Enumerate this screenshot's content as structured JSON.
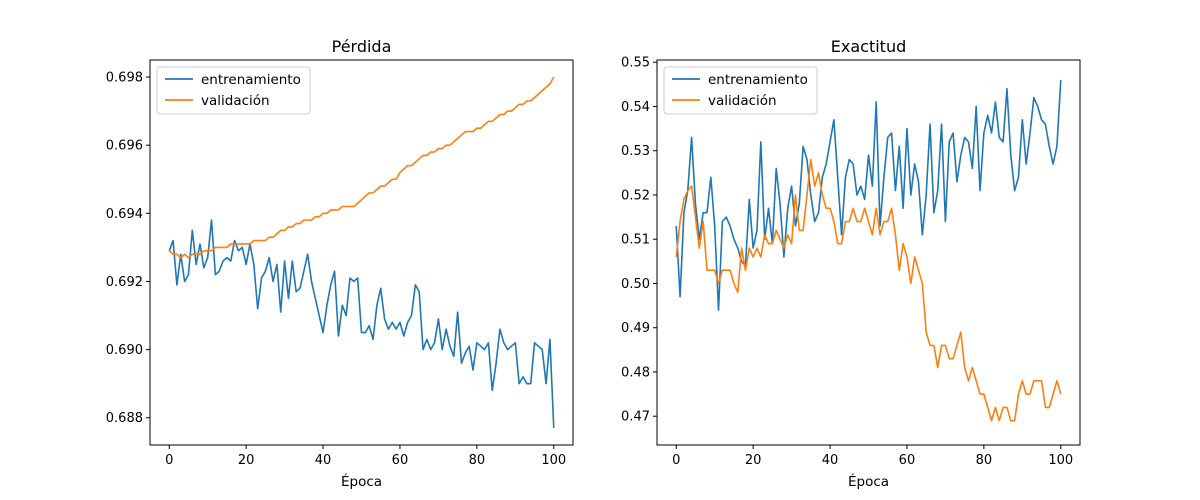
{
  "chart_data": [
    {
      "type": "line",
      "title": "Pérdida",
      "xlabel": "Época",
      "ylabel": "",
      "xlim": [
        -5,
        105
      ],
      "ylim": [
        0.6872,
        0.6985
      ],
      "xticks": [
        0,
        20,
        40,
        60,
        80,
        100
      ],
      "xtick_labels": [
        "0",
        "20",
        "40",
        "60",
        "80",
        "100"
      ],
      "yticks": [
        0.688,
        0.69,
        0.692,
        0.694,
        0.696,
        0.698
      ],
      "ytick_labels": [
        "0.688",
        "0.690",
        "0.692",
        "0.694",
        "0.696",
        "0.698"
      ],
      "grid": false,
      "legend": "top-left",
      "series": [
        {
          "name": "entrenamiento",
          "color": "#1f77b4",
          "x": [
            0,
            1,
            2,
            3,
            4,
            5,
            6,
            7,
            8,
            9,
            10,
            11,
            12,
            13,
            14,
            15,
            16,
            17,
            18,
            19,
            20,
            21,
            22,
            23,
            24,
            25,
            26,
            27,
            28,
            29,
            30,
            31,
            32,
            33,
            34,
            35,
            36,
            37,
            38,
            39,
            40,
            41,
            42,
            43,
            44,
            45,
            46,
            47,
            48,
            49,
            50,
            51,
            52,
            53,
            54,
            55,
            56,
            57,
            58,
            59,
            60,
            61,
            62,
            63,
            64,
            65,
            66,
            67,
            68,
            69,
            70,
            71,
            72,
            73,
            74,
            75,
            76,
            77,
            78,
            79,
            80,
            81,
            82,
            83,
            84,
            85,
            86,
            87,
            88,
            89,
            90,
            91,
            92,
            93,
            94,
            95,
            96,
            97,
            98,
            99,
            100
          ],
          "y": [
            0.6929,
            0.6932,
            0.6919,
            0.6928,
            0.692,
            0.6922,
            0.6935,
            0.6925,
            0.6931,
            0.6924,
            0.6927,
            0.6938,
            0.6922,
            0.6923,
            0.6926,
            0.6927,
            0.6926,
            0.6932,
            0.6929,
            0.693,
            0.6925,
            0.6931,
            0.6925,
            0.6912,
            0.6921,
            0.6923,
            0.6927,
            0.692,
            0.6925,
            0.6911,
            0.6926,
            0.6915,
            0.6926,
            0.6917,
            0.6918,
            0.6923,
            0.6928,
            0.692,
            0.6915,
            0.691,
            0.6905,
            0.6913,
            0.6919,
            0.6923,
            0.6904,
            0.6913,
            0.691,
            0.6921,
            0.692,
            0.6921,
            0.6905,
            0.6905,
            0.6907,
            0.6903,
            0.6913,
            0.6918,
            0.6909,
            0.6906,
            0.6908,
            0.6906,
            0.6908,
            0.6904,
            0.6908,
            0.691,
            0.6919,
            0.6917,
            0.69,
            0.6903,
            0.69,
            0.6902,
            0.6909,
            0.69,
            0.6906,
            0.6901,
            0.6898,
            0.6911,
            0.6896,
            0.6899,
            0.6901,
            0.6894,
            0.6902,
            0.6901,
            0.69,
            0.6902,
            0.6888,
            0.6896,
            0.6906,
            0.6902,
            0.69,
            0.6901,
            0.6902,
            0.689,
            0.6892,
            0.689,
            0.689,
            0.6902,
            0.6901,
            0.69,
            0.689,
            0.6903,
            0.6877
          ]
        },
        {
          "name": "validación",
          "color": "#ff7f0e",
          "x": [
            0,
            1,
            2,
            3,
            4,
            5,
            6,
            7,
            8,
            9,
            10,
            11,
            12,
            13,
            14,
            15,
            16,
            17,
            18,
            19,
            20,
            21,
            22,
            23,
            24,
            25,
            26,
            27,
            28,
            29,
            30,
            31,
            32,
            33,
            34,
            35,
            36,
            37,
            38,
            39,
            40,
            41,
            42,
            43,
            44,
            45,
            46,
            47,
            48,
            49,
            50,
            51,
            52,
            53,
            54,
            55,
            56,
            57,
            58,
            59,
            60,
            61,
            62,
            63,
            64,
            65,
            66,
            67,
            68,
            69,
            70,
            71,
            72,
            73,
            74,
            75,
            76,
            77,
            78,
            79,
            80,
            81,
            82,
            83,
            84,
            85,
            86,
            87,
            88,
            89,
            90,
            91,
            92,
            93,
            94,
            95,
            96,
            97,
            98,
            99,
            100
          ],
          "y": [
            0.6929,
            0.6928,
            0.6928,
            0.6927,
            0.6928,
            0.6927,
            0.6928,
            0.6928,
            0.6928,
            0.6929,
            0.6929,
            0.6929,
            0.693,
            0.693,
            0.693,
            0.693,
            0.6931,
            0.6931,
            0.6931,
            0.6931,
            0.6931,
            0.6931,
            0.6932,
            0.6932,
            0.6932,
            0.6932,
            0.6933,
            0.6933,
            0.6934,
            0.6935,
            0.6935,
            0.6936,
            0.6936,
            0.6937,
            0.6937,
            0.6938,
            0.6938,
            0.6938,
            0.6939,
            0.6939,
            0.694,
            0.694,
            0.6941,
            0.6941,
            0.6941,
            0.6942,
            0.6942,
            0.6942,
            0.6942,
            0.6943,
            0.6944,
            0.6945,
            0.6946,
            0.6946,
            0.6947,
            0.6948,
            0.6948,
            0.6949,
            0.695,
            0.695,
            0.6952,
            0.6953,
            0.6954,
            0.6954,
            0.6955,
            0.6956,
            0.6957,
            0.6957,
            0.6958,
            0.6958,
            0.6959,
            0.6959,
            0.696,
            0.696,
            0.6961,
            0.6962,
            0.6963,
            0.6964,
            0.6964,
            0.6964,
            0.6965,
            0.6965,
            0.6966,
            0.6967,
            0.6967,
            0.6968,
            0.6969,
            0.6969,
            0.697,
            0.697,
            0.6971,
            0.6972,
            0.6972,
            0.6973,
            0.6973,
            0.6974,
            0.6975,
            0.6976,
            0.6977,
            0.6978,
            0.698
          ]
        }
      ]
    },
    {
      "type": "line",
      "title": "Exactitud",
      "xlabel": "Época",
      "ylabel": "",
      "xlim": [
        -5,
        105
      ],
      "ylim": [
        0.4635,
        0.5505
      ],
      "xticks": [
        0,
        20,
        40,
        60,
        80,
        100
      ],
      "xtick_labels": [
        "0",
        "20",
        "40",
        "60",
        "80",
        "100"
      ],
      "yticks": [
        0.47,
        0.48,
        0.49,
        0.5,
        0.51,
        0.52,
        0.53,
        0.54,
        0.55
      ],
      "ytick_labels": [
        "0.47",
        "0.48",
        "0.49",
        "0.50",
        "0.51",
        "0.52",
        "0.53",
        "0.54",
        "0.55"
      ],
      "grid": false,
      "legend": "top-left",
      "series": [
        {
          "name": "entrenamiento",
          "color": "#1f77b4",
          "x": [
            0,
            1,
            2,
            3,
            4,
            5,
            6,
            7,
            8,
            9,
            10,
            11,
            12,
            13,
            14,
            15,
            16,
            17,
            18,
            19,
            20,
            21,
            22,
            23,
            24,
            25,
            26,
            27,
            28,
            29,
            30,
            31,
            32,
            33,
            34,
            35,
            36,
            37,
            38,
            39,
            40,
            41,
            42,
            43,
            44,
            45,
            46,
            47,
            48,
            49,
            50,
            51,
            52,
            53,
            54,
            55,
            56,
            57,
            58,
            59,
            60,
            61,
            62,
            63,
            64,
            65,
            66,
            67,
            68,
            69,
            70,
            71,
            72,
            73,
            74,
            75,
            76,
            77,
            78,
            79,
            80,
            81,
            82,
            83,
            84,
            85,
            86,
            87,
            88,
            89,
            90,
            91,
            92,
            93,
            94,
            95,
            96,
            97,
            98,
            99,
            100
          ],
          "y": [
            0.513,
            0.497,
            0.516,
            0.521,
            0.533,
            0.518,
            0.51,
            0.516,
            0.516,
            0.524,
            0.513,
            0.494,
            0.514,
            0.515,
            0.513,
            0.51,
            0.508,
            0.505,
            0.504,
            0.519,
            0.508,
            0.512,
            0.532,
            0.51,
            0.517,
            0.509,
            0.526,
            0.518,
            0.506,
            0.517,
            0.522,
            0.513,
            0.518,
            0.531,
            0.528,
            0.52,
            0.514,
            0.516,
            0.524,
            0.527,
            0.532,
            0.537,
            0.524,
            0.511,
            0.524,
            0.528,
            0.527,
            0.52,
            0.522,
            0.519,
            0.529,
            0.522,
            0.541,
            0.513,
            0.524,
            0.533,
            0.534,
            0.521,
            0.531,
            0.517,
            0.535,
            0.52,
            0.527,
            0.523,
            0.511,
            0.52,
            0.536,
            0.516,
            0.521,
            0.536,
            0.514,
            0.532,
            0.534,
            0.523,
            0.529,
            0.533,
            0.532,
            0.526,
            0.54,
            0.521,
            0.534,
            0.538,
            0.534,
            0.541,
            0.533,
            0.532,
            0.544,
            0.529,
            0.521,
            0.524,
            0.537,
            0.527,
            0.534,
            0.542,
            0.54,
            0.537,
            0.536,
            0.531,
            0.527,
            0.531,
            0.546
          ]
        },
        {
          "name": "validación",
          "color": "#ff7f0e",
          "x": [
            0,
            1,
            2,
            3,
            4,
            5,
            6,
            7,
            8,
            9,
            10,
            11,
            12,
            13,
            14,
            15,
            16,
            17,
            18,
            19,
            20,
            21,
            22,
            23,
            24,
            25,
            26,
            27,
            28,
            29,
            30,
            31,
            32,
            33,
            34,
            35,
            36,
            37,
            38,
            39,
            40,
            41,
            42,
            43,
            44,
            45,
            46,
            47,
            48,
            49,
            50,
            51,
            52,
            53,
            54,
            55,
            56,
            57,
            58,
            59,
            60,
            61,
            62,
            63,
            64,
            65,
            66,
            67,
            68,
            69,
            70,
            71,
            72,
            73,
            74,
            75,
            76,
            77,
            78,
            79,
            80,
            81,
            82,
            83,
            84,
            85,
            86,
            87,
            88,
            89,
            90,
            91,
            92,
            93,
            94,
            95,
            96,
            97,
            98,
            99,
            100
          ],
          "y": [
            0.506,
            0.514,
            0.519,
            0.521,
            0.522,
            0.515,
            0.508,
            0.514,
            0.503,
            0.503,
            0.503,
            0.5,
            0.503,
            0.503,
            0.503,
            0.5,
            0.498,
            0.508,
            0.503,
            0.508,
            0.506,
            0.508,
            0.506,
            0.511,
            0.509,
            0.509,
            0.512,
            0.51,
            0.508,
            0.511,
            0.509,
            0.52,
            0.512,
            0.512,
            0.52,
            0.528,
            0.522,
            0.525,
            0.52,
            0.517,
            0.517,
            0.514,
            0.509,
            0.509,
            0.514,
            0.514,
            0.517,
            0.514,
            0.514,
            0.517,
            0.514,
            0.511,
            0.517,
            0.511,
            0.514,
            0.514,
            0.517,
            0.511,
            0.503,
            0.509,
            0.506,
            0.5,
            0.506,
            0.503,
            0.5,
            0.489,
            0.486,
            0.486,
            0.481,
            0.486,
            0.486,
            0.483,
            0.483,
            0.486,
            0.489,
            0.481,
            0.478,
            0.481,
            0.478,
            0.475,
            0.475,
            0.472,
            0.469,
            0.472,
            0.469,
            0.472,
            0.472,
            0.469,
            0.469,
            0.475,
            0.478,
            0.475,
            0.475,
            0.478,
            0.478,
            0.478,
            0.472,
            0.472,
            0.475,
            0.478,
            0.475
          ]
        }
      ]
    }
  ]
}
